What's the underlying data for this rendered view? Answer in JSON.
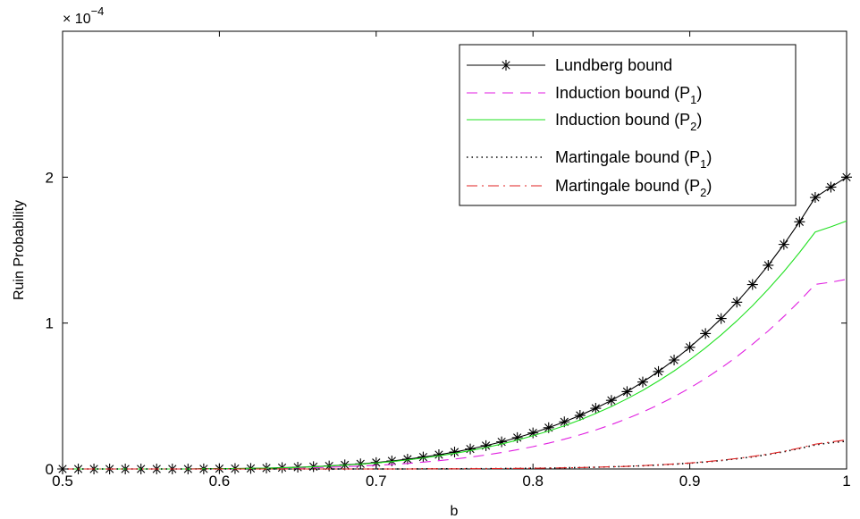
{
  "chart_data": {
    "type": "line",
    "xlabel": "b",
    "ylabel": "Ruin Probability",
    "y_exponent_label": "× 10",
    "y_exponent_power": "−4",
    "xlim": [
      0.5,
      1.0
    ],
    "ylim": [
      0,
      3
    ],
    "x_ticks": [
      "0.5",
      "0.6",
      "0.7",
      "0.8",
      "0.9",
      "1"
    ],
    "y_ticks": [
      "0",
      "1",
      "2"
    ],
    "legend_position": "top-right",
    "x": [
      0.5,
      0.51,
      0.52,
      0.53,
      0.54,
      0.55,
      0.56,
      0.57,
      0.58,
      0.59,
      0.6,
      0.61,
      0.62,
      0.63,
      0.64,
      0.65,
      0.66,
      0.67,
      0.68,
      0.69,
      0.7,
      0.71,
      0.72,
      0.73,
      0.74,
      0.75,
      0.76,
      0.77,
      0.78,
      0.79,
      0.8,
      0.81,
      0.82,
      0.83,
      0.84,
      0.85,
      0.86,
      0.87,
      0.88,
      0.89,
      0.9,
      0.91,
      0.92,
      0.93,
      0.94,
      0.95,
      0.96,
      0.97,
      0.98,
      0.99,
      1.0
    ],
    "series": [
      {
        "name": "Lundberg bound",
        "legend_main": "Lundberg bound",
        "legend_sub": "",
        "legend_tail": "",
        "color": "#000000",
        "style": "solid",
        "marker": "star",
        "values": [
          0.0,
          0.0,
          0.0,
          0.0,
          0.0,
          0.0,
          0.0,
          0.0,
          0.0,
          0.001,
          0.002,
          0.003,
          0.004,
          0.006,
          0.009,
          0.012,
          0.016,
          0.021,
          0.028,
          0.035,
          0.044,
          0.055,
          0.067,
          0.082,
          0.098,
          0.116,
          0.137,
          0.16,
          0.186,
          0.215,
          0.247,
          0.283,
          0.323,
          0.367,
          0.416,
          0.47,
          0.53,
          0.596,
          0.668,
          0.747,
          0.834,
          0.928,
          1.031,
          1.143,
          1.264,
          1.396,
          1.539,
          1.694,
          1.861,
          1.932,
          2.0
        ]
      },
      {
        "name": "Induction bound (P1)",
        "legend_main": "Induction bound (P",
        "legend_sub": "1",
        "legend_tail": ")",
        "color": "#e01ee0",
        "style": "dashed",
        "marker": "none",
        "values": [
          0.0,
          0.0,
          0.0,
          0.0,
          0.0,
          0.0,
          0.0,
          0.0,
          0.0,
          0.0,
          0.001,
          0.002,
          0.003,
          0.004,
          0.005,
          0.007,
          0.009,
          0.012,
          0.016,
          0.02,
          0.025,
          0.031,
          0.038,
          0.047,
          0.057,
          0.068,
          0.081,
          0.096,
          0.113,
          0.132,
          0.153,
          0.177,
          0.204,
          0.234,
          0.267,
          0.304,
          0.345,
          0.39,
          0.44,
          0.495,
          0.555,
          0.62,
          0.692,
          0.77,
          0.855,
          0.946,
          1.045,
          1.151,
          1.265,
          1.28,
          1.3
        ]
      },
      {
        "name": "Induction bound (P2)",
        "legend_main": "Induction  bound (P",
        "legend_sub": "2",
        "legend_tail": ")",
        "color": "#22e022",
        "style": "solid",
        "marker": "none",
        "values": [
          0.0,
          0.0,
          0.0,
          0.0,
          0.0,
          0.0,
          0.0,
          0.0,
          0.0,
          0.001,
          0.002,
          0.003,
          0.004,
          0.006,
          0.008,
          0.011,
          0.015,
          0.02,
          0.026,
          0.033,
          0.041,
          0.051,
          0.062,
          0.075,
          0.09,
          0.107,
          0.126,
          0.147,
          0.171,
          0.198,
          0.228,
          0.26,
          0.296,
          0.336,
          0.38,
          0.428,
          0.481,
          0.539,
          0.603,
          0.672,
          0.748,
          0.83,
          0.919,
          1.015,
          1.119,
          1.232,
          1.353,
          1.484,
          1.624,
          1.66,
          1.7
        ]
      },
      {
        "name": "Martingale bound (P1)",
        "legend_main": "Martingale bound (P",
        "legend_sub": "1",
        "legend_tail": ")",
        "color": "#000000",
        "style": "dotted",
        "marker": "none",
        "values": [
          0.0,
          0.0,
          0.0,
          0.0,
          0.0,
          0.0,
          0.0,
          0.0,
          0.0,
          0.0,
          0.0,
          0.0,
          0.0,
          0.0,
          0.0,
          0.0,
          0.0,
          0.0,
          0.0,
          0.0,
          0.0,
          0.0,
          0.0,
          0.001,
          0.001,
          0.001,
          0.002,
          0.002,
          0.003,
          0.004,
          0.005,
          0.006,
          0.008,
          0.01,
          0.012,
          0.015,
          0.018,
          0.022,
          0.027,
          0.033,
          0.04,
          0.048,
          0.058,
          0.07,
          0.083,
          0.099,
          0.118,
          0.14,
          0.165,
          0.18,
          0.19
        ]
      },
      {
        "name": "Martingale bound (P2)",
        "legend_main": "Martingale bound (P",
        "legend_sub": "2",
        "legend_tail": ")",
        "color": "#e02020",
        "style": "dashdot",
        "marker": "none",
        "values": [
          0.0,
          0.0,
          0.0,
          0.0,
          0.0,
          0.0,
          0.0,
          0.0,
          0.0,
          0.0,
          0.0,
          0.0,
          0.0,
          0.0,
          0.0,
          0.0,
          0.0,
          0.0,
          0.0,
          0.0,
          0.0,
          0.0,
          0.0,
          0.001,
          0.001,
          0.001,
          0.002,
          0.002,
          0.003,
          0.004,
          0.005,
          0.006,
          0.008,
          0.01,
          0.012,
          0.015,
          0.018,
          0.023,
          0.028,
          0.034,
          0.041,
          0.05,
          0.06,
          0.072,
          0.086,
          0.102,
          0.121,
          0.144,
          0.17,
          0.185,
          0.2
        ]
      }
    ]
  }
}
